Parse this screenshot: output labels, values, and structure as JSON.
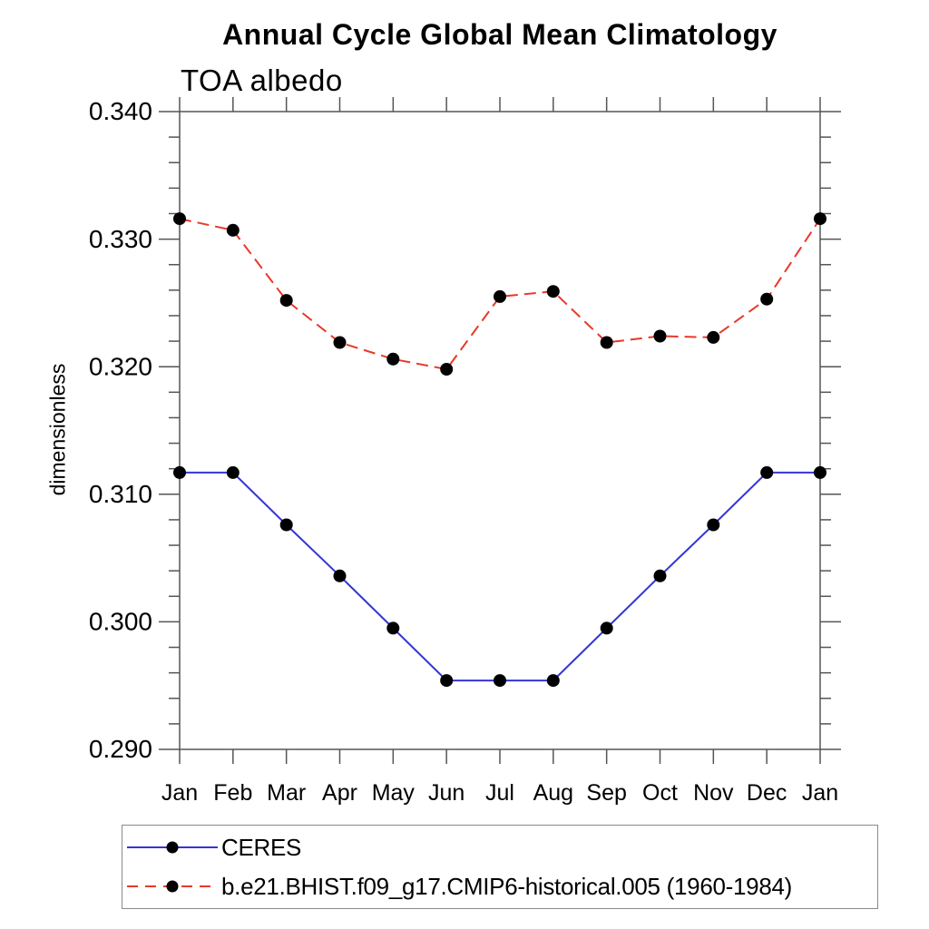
{
  "chart_data": {
    "type": "line",
    "title": "Annual Cycle Global Mean Climatology",
    "subtitle": "TOA albedo",
    "xlabel": "",
    "ylabel": "dimensionless",
    "categories": [
      "Jan",
      "Feb",
      "Mar",
      "Apr",
      "May",
      "Jun",
      "Jul",
      "Aug",
      "Sep",
      "Oct",
      "Nov",
      "Dec",
      "Jan"
    ],
    "ylim": [
      0.29,
      0.34
    ],
    "ytick_major_step": 0.01,
    "ytick_minor_step": 0.002,
    "ytick_labels": [
      "0.290",
      "0.300",
      "0.310",
      "0.320",
      "0.330",
      "0.340"
    ],
    "grid": false,
    "legend_position": "below-plot-left",
    "frame_color": "#555555",
    "marker_color": "#000000",
    "series": [
      {
        "name": "CERES",
        "color": "#3535d6",
        "style": "solid",
        "marker": "filled-circle",
        "values": [
          0.3117,
          0.3117,
          0.3076,
          0.3036,
          0.2995,
          0.2954,
          0.2954,
          0.2954,
          0.2995,
          0.3036,
          0.3076,
          0.3117,
          0.3117
        ]
      },
      {
        "name": "b.e21.BHIST.f09_g17.CMIP6-historical.005 (1960-1984)",
        "color": "#e8392a",
        "style": "dashed",
        "marker": "filled-circle",
        "values": [
          0.3316,
          0.3307,
          0.3252,
          0.3219,
          0.3206,
          0.3198,
          0.3255,
          0.3259,
          0.3219,
          0.3224,
          0.3223,
          0.3253,
          0.3316
        ]
      }
    ]
  }
}
